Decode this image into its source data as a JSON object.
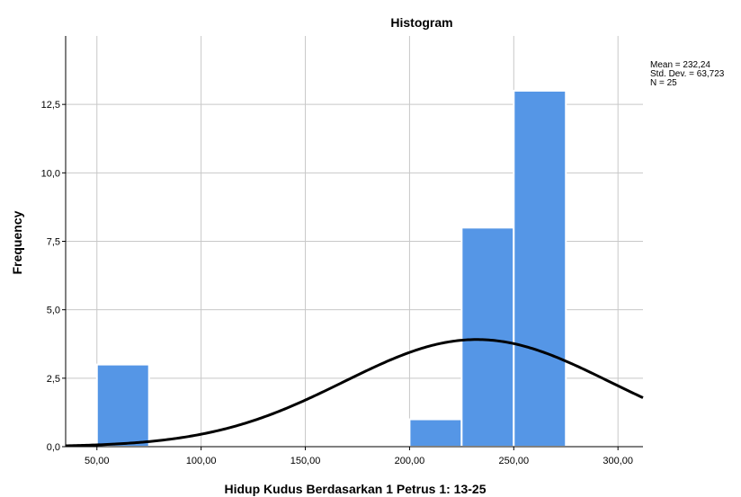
{
  "chart_data": {
    "type": "bar",
    "title": "Histogram",
    "xlabel": "Hidup Kudus Berdasarkan 1 Petrus 1: 13-25",
    "ylabel": "Frequency",
    "xlim": [
      35,
      312
    ],
    "ylim": [
      0,
      15
    ],
    "grid": true,
    "bins": [
      {
        "start": 50,
        "end": 75,
        "count": 3
      },
      {
        "start": 200,
        "end": 225,
        "count": 1
      },
      {
        "start": 225,
        "end": 250,
        "count": 8
      },
      {
        "start": 250,
        "end": 275,
        "count": 13
      }
    ],
    "x_ticks": [
      {
        "value": 50,
        "label": "50,00"
      },
      {
        "value": 100,
        "label": "100,00"
      },
      {
        "value": 150,
        "label": "150,00"
      },
      {
        "value": 200,
        "label": "200,00"
      },
      {
        "value": 250,
        "label": "250,00"
      },
      {
        "value": 300,
        "label": "300,00"
      }
    ],
    "y_ticks": [
      {
        "value": 0,
        "label": "0,0"
      },
      {
        "value": 2.5,
        "label": "2,5"
      },
      {
        "value": 5,
        "label": "5,0"
      },
      {
        "value": 7.5,
        "label": "7,5"
      },
      {
        "value": 10,
        "label": "10,0"
      },
      {
        "value": 12.5,
        "label": "12,5"
      }
    ],
    "normal_curve": {
      "mean": 232.24,
      "sd": 63.723,
      "n": 25,
      "bin_width": 25
    },
    "stats": [
      "Mean = 232,24",
      "Std. Dev. = 63,723",
      "N = 25"
    ],
    "colors": {
      "bar": "#5596e6",
      "bar_edge": "#ffffff",
      "curve": "#000000",
      "grid": "#c8c8c8",
      "axis": "#000000"
    }
  }
}
